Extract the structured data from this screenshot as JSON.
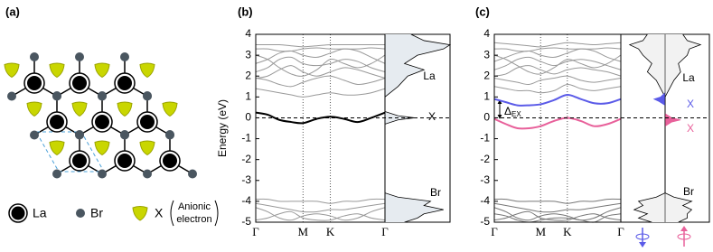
{
  "structure": {
    "label": "(a)",
    "legend": {
      "la": "La",
      "br": "Br",
      "x": "X",
      "x_note": [
        "Anionic",
        "electron"
      ]
    }
  },
  "chart_data": [
    {
      "type": "line",
      "label": "(b)",
      "ylabel": "Energy (eV)",
      "x": [
        0,
        0.25,
        0.5,
        0.75,
        1,
        1.289,
        1.577,
        1.866,
        2.155,
        2.443,
        2.732
      ],
      "xlim": [
        0,
        2.732
      ],
      "xticks": [
        {
          "value": 0,
          "label": "Γ"
        },
        {
          "value": 1,
          "label": "M"
        },
        {
          "value": 1.577,
          "label": "K"
        },
        {
          "value": 2.732,
          "label": "Γ"
        }
      ],
      "ylim": [
        -5,
        4
      ],
      "yticks": [
        -5,
        -4,
        -3,
        -2,
        -1,
        0,
        1,
        2,
        3,
        4
      ],
      "fermi_level": 0,
      "series": [
        {
          "color": "#999999",
          "values": [
            3.5,
            3.5,
            3.5,
            3.45,
            3.4,
            3.45,
            3.5,
            3.5,
            3.5,
            3.5,
            3.5
          ]
        },
        {
          "color": "#999999",
          "values": [
            3.3,
            3.3,
            3.2,
            3.2,
            3.3,
            3.35,
            3.3,
            3.3,
            3.3,
            3.35,
            3.3
          ]
        },
        {
          "color": "#999999",
          "values": [
            2.6,
            2.8,
            3.1,
            3.2,
            3.0,
            2.9,
            3.1,
            3.3,
            3.2,
            2.9,
            2.6
          ]
        },
        {
          "color": "#999999",
          "values": [
            2.2,
            2.4,
            2.8,
            2.9,
            2.6,
            2.5,
            2.6,
            2.8,
            2.7,
            2.4,
            2.2
          ]
        },
        {
          "color": "#999999",
          "values": [
            1.9,
            2.0,
            2.3,
            2.5,
            2.2,
            2.0,
            2.2,
            2.4,
            2.3,
            2.1,
            1.9
          ]
        },
        {
          "color": "#999999",
          "values": [
            1.9,
            1.8,
            1.6,
            1.5,
            1.7,
            1.9,
            2.0,
            1.8,
            1.6,
            1.7,
            1.9
          ]
        },
        {
          "color": "#999999",
          "values": [
            1.4,
            1.3,
            1.2,
            1.1,
            1.0,
            1.1,
            1.2,
            1.1,
            1.1,
            1.2,
            1.4
          ]
        },
        {
          "color": "#999999",
          "values": [
            3.0,
            2.8,
            2.4,
            2.1,
            2.0,
            2.3,
            2.8,
            2.6,
            2.4,
            2.6,
            3.0
          ]
        },
        {
          "color": "#999999",
          "values": [
            -3.9,
            -3.9,
            -4.0,
            -4.0,
            -4.0,
            -4.0,
            -4.1,
            -4.0,
            -4.0,
            -3.9,
            -3.9
          ]
        },
        {
          "color": "#999999",
          "values": [
            -4.1,
            -4.2,
            -4.3,
            -4.4,
            -4.5,
            -4.5,
            -4.4,
            -4.4,
            -4.3,
            -4.2,
            -4.1
          ]
        },
        {
          "color": "#999999",
          "values": [
            -4.3,
            -4.5,
            -4.8,
            -4.9,
            -4.7,
            -4.6,
            -4.7,
            -4.9,
            -4.8,
            -4.5,
            -4.3
          ]
        },
        {
          "color": "#999999",
          "values": [
            -4.9,
            -4.8,
            -4.6,
            -4.5,
            -4.8,
            -4.9,
            -4.9,
            -4.7,
            -4.6,
            -4.8,
            -4.9
          ]
        },
        {
          "color": "#000000",
          "values": [
            0.25,
            0.15,
            -0.1,
            -0.2,
            -0.25,
            -0.05,
            0.05,
            -0.05,
            -0.2,
            0.0,
            0.25
          ]
        }
      ],
      "dos_xlim": [
        0,
        1
      ],
      "dos": [
        {
          "color": "#e6ebf0",
          "side": "none",
          "energies": [
            -5,
            -4.8,
            -4.6,
            -4.4,
            -4.2,
            -4.0,
            -3.8,
            -3.6,
            -0.3,
            -0.1,
            0,
            0.1,
            0.3,
            1.0,
            1.5,
            2.0,
            2.3,
            2.6,
            3.0,
            3.3,
            3.5,
            3.7,
            4
          ],
          "values": [
            0.3,
            0.5,
            0.6,
            0.9,
            0.6,
            0.7,
            0.2,
            0,
            0,
            0.2,
            0.45,
            0.2,
            0,
            0,
            0.2,
            0.35,
            0.6,
            0.3,
            0.5,
            0.9,
            1.0,
            0.6,
            0.4
          ]
        }
      ],
      "annotations": [
        {
          "text": "La",
          "color": "#000000"
        },
        {
          "text": "X",
          "color": "#000000"
        },
        {
          "text": "Br",
          "color": "#000000"
        }
      ]
    },
    {
      "type": "line",
      "label": "(c)",
      "x": [
        0,
        0.25,
        0.5,
        0.75,
        1,
        1.289,
        1.577,
        1.866,
        2.155,
        2.443,
        2.732
      ],
      "xlim": [
        0,
        2.732
      ],
      "xticks": [
        {
          "value": 0,
          "label": "Γ"
        },
        {
          "value": 1,
          "label": "M"
        },
        {
          "value": 1.577,
          "label": "K"
        },
        {
          "value": 2.732,
          "label": "Γ"
        }
      ],
      "ylim": [
        -5,
        4
      ],
      "yticks": [
        -5,
        -4,
        -3,
        -2,
        -1,
        0,
        1,
        2,
        3,
        4
      ],
      "fermi_level": 0,
      "series": [
        {
          "color": "#999999",
          "values": [
            3.6,
            3.55,
            3.5,
            3.45,
            3.4,
            3.5,
            3.6,
            3.55,
            3.5,
            3.55,
            3.6
          ]
        },
        {
          "color": "#999999",
          "values": [
            3.3,
            3.3,
            3.2,
            3.2,
            3.3,
            3.35,
            3.3,
            3.3,
            3.3,
            3.35,
            3.3
          ]
        },
        {
          "color": "#999999",
          "values": [
            2.7,
            2.9,
            3.1,
            3.2,
            3.0,
            2.9,
            3.1,
            3.3,
            3.2,
            2.9,
            2.7
          ]
        },
        {
          "color": "#999999",
          "values": [
            2.3,
            2.5,
            2.8,
            2.9,
            2.7,
            2.5,
            2.7,
            2.8,
            2.7,
            2.5,
            2.3
          ]
        },
        {
          "color": "#999999",
          "values": [
            2.0,
            2.1,
            2.4,
            2.5,
            2.3,
            2.1,
            2.3,
            2.4,
            2.3,
            2.2,
            2.0
          ]
        },
        {
          "color": "#999999",
          "values": [
            1.9,
            1.8,
            1.7,
            1.6,
            1.8,
            1.9,
            2.0,
            1.8,
            1.7,
            1.8,
            1.9
          ]
        },
        {
          "color": "#999999",
          "values": [
            1.5,
            1.4,
            1.3,
            1.3,
            1.2,
            1.3,
            1.6,
            1.4,
            1.3,
            1.4,
            1.5
          ]
        },
        {
          "color": "#999999",
          "values": [
            3.0,
            2.8,
            2.5,
            2.2,
            2.1,
            2.4,
            2.8,
            2.6,
            2.4,
            2.6,
            3.0
          ]
        },
        {
          "color": "#777777",
          "values": [
            -3.9,
            -3.9,
            -4.0,
            -4.0,
            -4.0,
            -4.0,
            -4.1,
            -4.0,
            -4.0,
            -3.9,
            -3.9
          ]
        },
        {
          "color": "#777777",
          "values": [
            -4.1,
            -4.2,
            -4.3,
            -4.4,
            -4.5,
            -4.5,
            -4.4,
            -4.4,
            -4.3,
            -4.2,
            -4.1
          ]
        },
        {
          "color": "#777777",
          "values": [
            -4.3,
            -4.5,
            -4.8,
            -4.9,
            -4.7,
            -4.6,
            -4.7,
            -4.9,
            -4.8,
            -4.5,
            -4.3
          ]
        },
        {
          "color": "#777777",
          "values": [
            -4.9,
            -4.8,
            -4.6,
            -4.5,
            -4.8,
            -4.9,
            -4.9,
            -4.7,
            -4.6,
            -4.8,
            -4.9
          ]
        },
        {
          "color": "#777777",
          "values": [
            -4.6,
            -4.7,
            -4.9,
            -5.0,
            -4.9,
            -4.8,
            -4.8,
            -4.9,
            -5.0,
            -4.7,
            -4.6
          ]
        },
        {
          "color": "#5b5be8",
          "values": [
            0.9,
            0.75,
            0.6,
            0.6,
            0.65,
            0.85,
            1.1,
            0.9,
            0.7,
            0.7,
            0.9
          ]
        },
        {
          "color": "#e8609a",
          "values": [
            -0.05,
            -0.3,
            -0.5,
            -0.5,
            -0.4,
            -0.15,
            0.0,
            -0.15,
            -0.4,
            -0.3,
            -0.05
          ]
        }
      ],
      "dos_xlim": [
        0,
        1
      ],
      "dos": [
        {
          "color": "#f2f2f2",
          "side": "left",
          "energies": [
            -5,
            -4.8,
            -4.6,
            -4.4,
            -4.2,
            -4.0,
            -3.8,
            -3.6,
            -0.3,
            0.6,
            1.0,
            1.4,
            1.8,
            2.2,
            2.6,
            3.0,
            3.3,
            3.5,
            3.7,
            4
          ],
          "values": [
            0.3,
            0.6,
            0.4,
            0.7,
            0.5,
            0.6,
            0.2,
            0,
            0,
            0,
            0,
            0.1,
            0.2,
            0.4,
            0.3,
            0.5,
            0.6,
            0.8,
            0.5,
            0.4
          ]
        },
        {
          "color": "#f2f2f2",
          "side": "right",
          "energies": [
            -5,
            -4.8,
            -4.6,
            -4.4,
            -4.2,
            -4.0,
            -3.8,
            -3.6,
            -0.3,
            0.6,
            1.0,
            1.4,
            1.8,
            2.2,
            2.6,
            3.0,
            3.3,
            3.5,
            3.7,
            4
          ],
          "values": [
            0.3,
            0.5,
            0.5,
            0.6,
            0.4,
            0.6,
            0.2,
            0,
            0,
            0,
            0,
            0.1,
            0.2,
            0.35,
            0.3,
            0.5,
            0.55,
            0.8,
            0.5,
            0.4
          ]
        },
        {
          "color": "#5b5be8",
          "side": "left",
          "energies": [
            0.6,
            0.8,
            0.9,
            1.0,
            1.2
          ],
          "values": [
            0,
            0.15,
            0.25,
            0.1,
            0
          ]
        },
        {
          "color": "#e8609a",
          "side": "right",
          "energies": [
            -0.4,
            -0.2,
            -0.1,
            0.0,
            0.2
          ],
          "values": [
            0,
            0.15,
            0.35,
            0.15,
            0
          ]
        }
      ],
      "annotations": [
        {
          "text": "La",
          "color": "#000000"
        },
        {
          "text": "X",
          "color": "#5b5be8"
        },
        {
          "text": "X",
          "color": "#e8609a"
        },
        {
          "text": "Br",
          "color": "#000000"
        }
      ],
      "gap_label": {
        "symbol": "Δ",
        "subscript": "EX"
      }
    }
  ]
}
